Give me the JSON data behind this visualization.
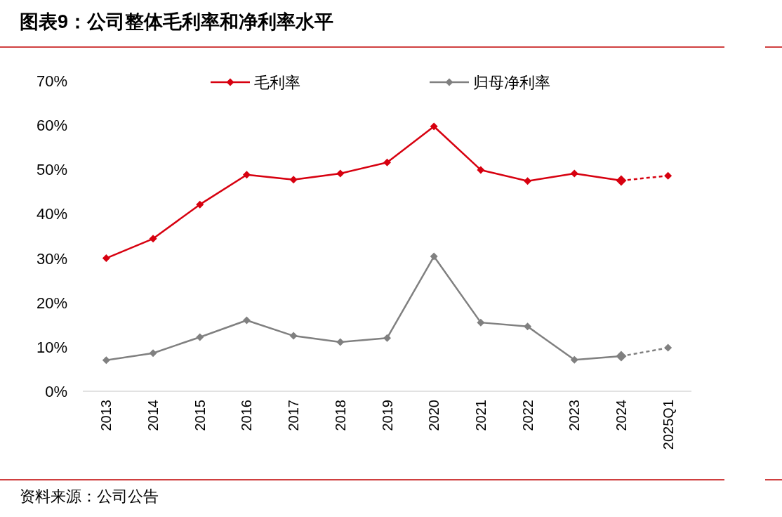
{
  "chart_data": {
    "type": "line",
    "title": "图表9：公司整体毛利率和净利率水平",
    "categories": [
      "2013",
      "2014",
      "2015",
      "2016",
      "2017",
      "2018",
      "2019",
      "2020",
      "2021",
      "2022",
      "2023",
      "2024",
      "2025Q1"
    ],
    "series": [
      {
        "name": "毛利率",
        "color": "#d7000f",
        "line_style": "solid",
        "values": [
          30.0,
          34.4,
          42.1,
          48.8,
          47.7,
          49.1,
          51.6,
          59.7,
          49.9,
          47.4,
          49.1,
          47.5,
          null
        ]
      },
      {
        "color": "#d7000f",
        "line_style": "dashed",
        "values": [
          null,
          null,
          null,
          null,
          null,
          null,
          null,
          null,
          null,
          null,
          null,
          47.5,
          48.6
        ]
      },
      {
        "name": "归母净利率",
        "color": "#808080",
        "line_style": "solid",
        "values": [
          7.0,
          8.6,
          12.2,
          16.0,
          12.5,
          11.1,
          12.0,
          30.4,
          15.5,
          14.6,
          7.1,
          7.9,
          null
        ]
      },
      {
        "color": "#808080",
        "line_style": "dashed",
        "values": [
          null,
          null,
          null,
          null,
          null,
          null,
          null,
          null,
          null,
          null,
          null,
          7.9,
          9.8
        ]
      }
    ],
    "ylim": [
      0,
      70
    ],
    "yticks": [
      {
        "value": 0,
        "label": "0%"
      },
      {
        "value": 10,
        "label": "10%"
      },
      {
        "value": 20,
        "label": "20%"
      },
      {
        "value": 30,
        "label": "30%"
      },
      {
        "value": 40,
        "label": "40%"
      },
      {
        "value": 50,
        "label": "50%"
      },
      {
        "value": 60,
        "label": "60%"
      },
      {
        "value": 70,
        "label": "70%"
      }
    ],
    "marker": "diamond",
    "grid": false,
    "legend": "top",
    "annotations": [
      "资料来源：公司公告"
    ]
  }
}
